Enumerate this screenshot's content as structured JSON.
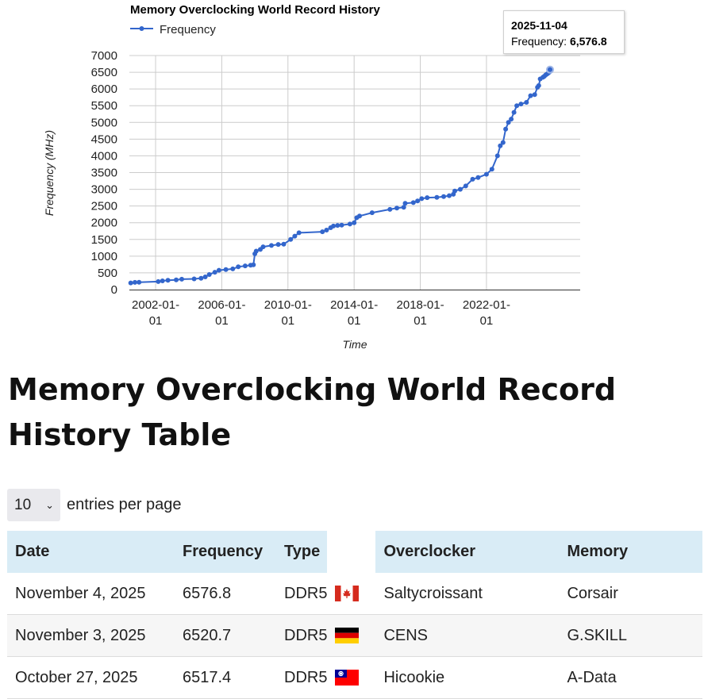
{
  "chart_data": {
    "type": "line",
    "title": "Memory Overclocking World Record History",
    "xlabel": "Time",
    "ylabel": "Frequency (MHz)",
    "ylim": [
      0,
      7000
    ],
    "xlim": [
      "2000-06-01",
      "2027-09-01"
    ],
    "yticks": [
      0,
      500,
      1000,
      1500,
      2000,
      2500,
      3000,
      3500,
      4000,
      4500,
      5000,
      5500,
      6000,
      6500,
      7000
    ],
    "xticks": [
      {
        "date": "2002-01-01",
        "line1": "2002-01-",
        "line2": "01"
      },
      {
        "date": "2006-01-01",
        "line1": "2006-01-",
        "line2": "01"
      },
      {
        "date": "2010-01-01",
        "line1": "2010-01-",
        "line2": "01"
      },
      {
        "date": "2014-01-01",
        "line1": "2014-01-",
        "line2": "01"
      },
      {
        "date": "2018-01-01",
        "line1": "2018-01-",
        "line2": "01"
      },
      {
        "date": "2022-01-01",
        "line1": "2022-01-",
        "line2": "01"
      }
    ],
    "grid": true,
    "legend": "top-left",
    "series": [
      {
        "name": "Frequency",
        "color": "#3366cc",
        "points": [
          [
            "2000-07-01",
            200
          ],
          [
            "2000-10-01",
            215
          ],
          [
            "2001-01-01",
            218
          ],
          [
            "2002-03-01",
            240
          ],
          [
            "2002-06-01",
            260
          ],
          [
            "2002-10-01",
            280
          ],
          [
            "2003-04-01",
            290
          ],
          [
            "2003-08-01",
            310
          ],
          [
            "2004-05-01",
            320
          ],
          [
            "2004-10-01",
            340
          ],
          [
            "2005-01-01",
            380
          ],
          [
            "2005-04-01",
            450
          ],
          [
            "2005-08-01",
            520
          ],
          [
            "2005-11-01",
            580
          ],
          [
            "2006-04-01",
            600
          ],
          [
            "2006-09-01",
            620
          ],
          [
            "2007-01-01",
            680
          ],
          [
            "2007-06-01",
            710
          ],
          [
            "2007-10-01",
            730
          ],
          [
            "2007-12-01",
            740
          ],
          [
            "2008-01-01",
            1070
          ],
          [
            "2008-02-01",
            1150
          ],
          [
            "2008-05-01",
            1200
          ],
          [
            "2008-07-01",
            1280
          ],
          [
            "2009-01-01",
            1320
          ],
          [
            "2009-06-01",
            1350
          ],
          [
            "2009-10-01",
            1360
          ],
          [
            "2010-03-01",
            1500
          ],
          [
            "2010-06-01",
            1600
          ],
          [
            "2010-09-01",
            1700
          ],
          [
            "2012-02-01",
            1730
          ],
          [
            "2012-05-01",
            1780
          ],
          [
            "2012-08-01",
            1850
          ],
          [
            "2012-10-01",
            1900
          ],
          [
            "2013-01-01",
            1920
          ],
          [
            "2013-04-01",
            1930
          ],
          [
            "2013-10-01",
            1960
          ],
          [
            "2014-01-01",
            2000
          ],
          [
            "2014-03-01",
            2150
          ],
          [
            "2014-05-01",
            2200
          ],
          [
            "2015-02-01",
            2300
          ],
          [
            "2016-03-01",
            2400
          ],
          [
            "2016-08-01",
            2440
          ],
          [
            "2017-01-01",
            2460
          ],
          [
            "2017-02-01",
            2580
          ],
          [
            "2017-08-01",
            2600
          ],
          [
            "2017-11-01",
            2650
          ],
          [
            "2018-02-01",
            2720
          ],
          [
            "2018-06-01",
            2750
          ],
          [
            "2019-01-01",
            2760
          ],
          [
            "2019-06-01",
            2780
          ],
          [
            "2019-10-01",
            2810
          ],
          [
            "2020-01-01",
            2850
          ],
          [
            "2020-02-01",
            2950
          ],
          [
            "2020-06-01",
            3000
          ],
          [
            "2020-10-01",
            3100
          ],
          [
            "2021-03-01",
            3300
          ],
          [
            "2021-07-01",
            3350
          ],
          [
            "2022-01-01",
            3450
          ],
          [
            "2022-05-01",
            3600
          ],
          [
            "2022-09-01",
            4000
          ],
          [
            "2022-11-01",
            4300
          ],
          [
            "2023-01-01",
            4400
          ],
          [
            "2023-03-01",
            4800
          ],
          [
            "2023-05-01",
            5000
          ],
          [
            "2023-07-01",
            5100
          ],
          [
            "2023-09-01",
            5300
          ],
          [
            "2023-11-01",
            5500
          ],
          [
            "2024-02-01",
            5550
          ],
          [
            "2024-06-01",
            5600
          ],
          [
            "2024-09-01",
            5800
          ],
          [
            "2024-12-01",
            5830
          ],
          [
            "2025-02-01",
            6050
          ],
          [
            "2025-03-01",
            6100
          ],
          [
            "2025-04-01",
            6300
          ],
          [
            "2025-06-01",
            6350
          ],
          [
            "2025-07-01",
            6380
          ],
          [
            "2025-08-01",
            6420
          ],
          [
            "2025-09-01",
            6450
          ],
          [
            "2025-10-01",
            6480
          ],
          [
            "2025-10-27",
            6517.4
          ],
          [
            "2025-11-03",
            6520.7
          ],
          [
            "2025-11-04",
            6576.8
          ]
        ]
      }
    ],
    "tooltip": {
      "date": "2025-11-04",
      "label": "Frequency: ",
      "value": "6,576.8"
    }
  },
  "heading": "Memory Overclocking World Record History Table",
  "entries": {
    "selected": "10",
    "label": "entries per page"
  },
  "table": {
    "columns": [
      "Date",
      "Frequency",
      "Type",
      "",
      "Overclocker",
      "Memory"
    ],
    "rows": [
      {
        "date": "November 4, 2025",
        "frequency": "6576.8",
        "type": "DDR5",
        "flag": "canada-flag",
        "overclocker": "Saltycroissant",
        "memory": "Corsair"
      },
      {
        "date": "November 3, 2025",
        "frequency": "6520.7",
        "type": "DDR5",
        "flag": "germany-flag",
        "overclocker": "CENS",
        "memory": "G.SKILL"
      },
      {
        "date": "October 27, 2025",
        "frequency": "6517.4",
        "type": "DDR5",
        "flag": "taiwan-flag",
        "overclocker": "Hicookie",
        "memory": "A-Data"
      }
    ]
  }
}
